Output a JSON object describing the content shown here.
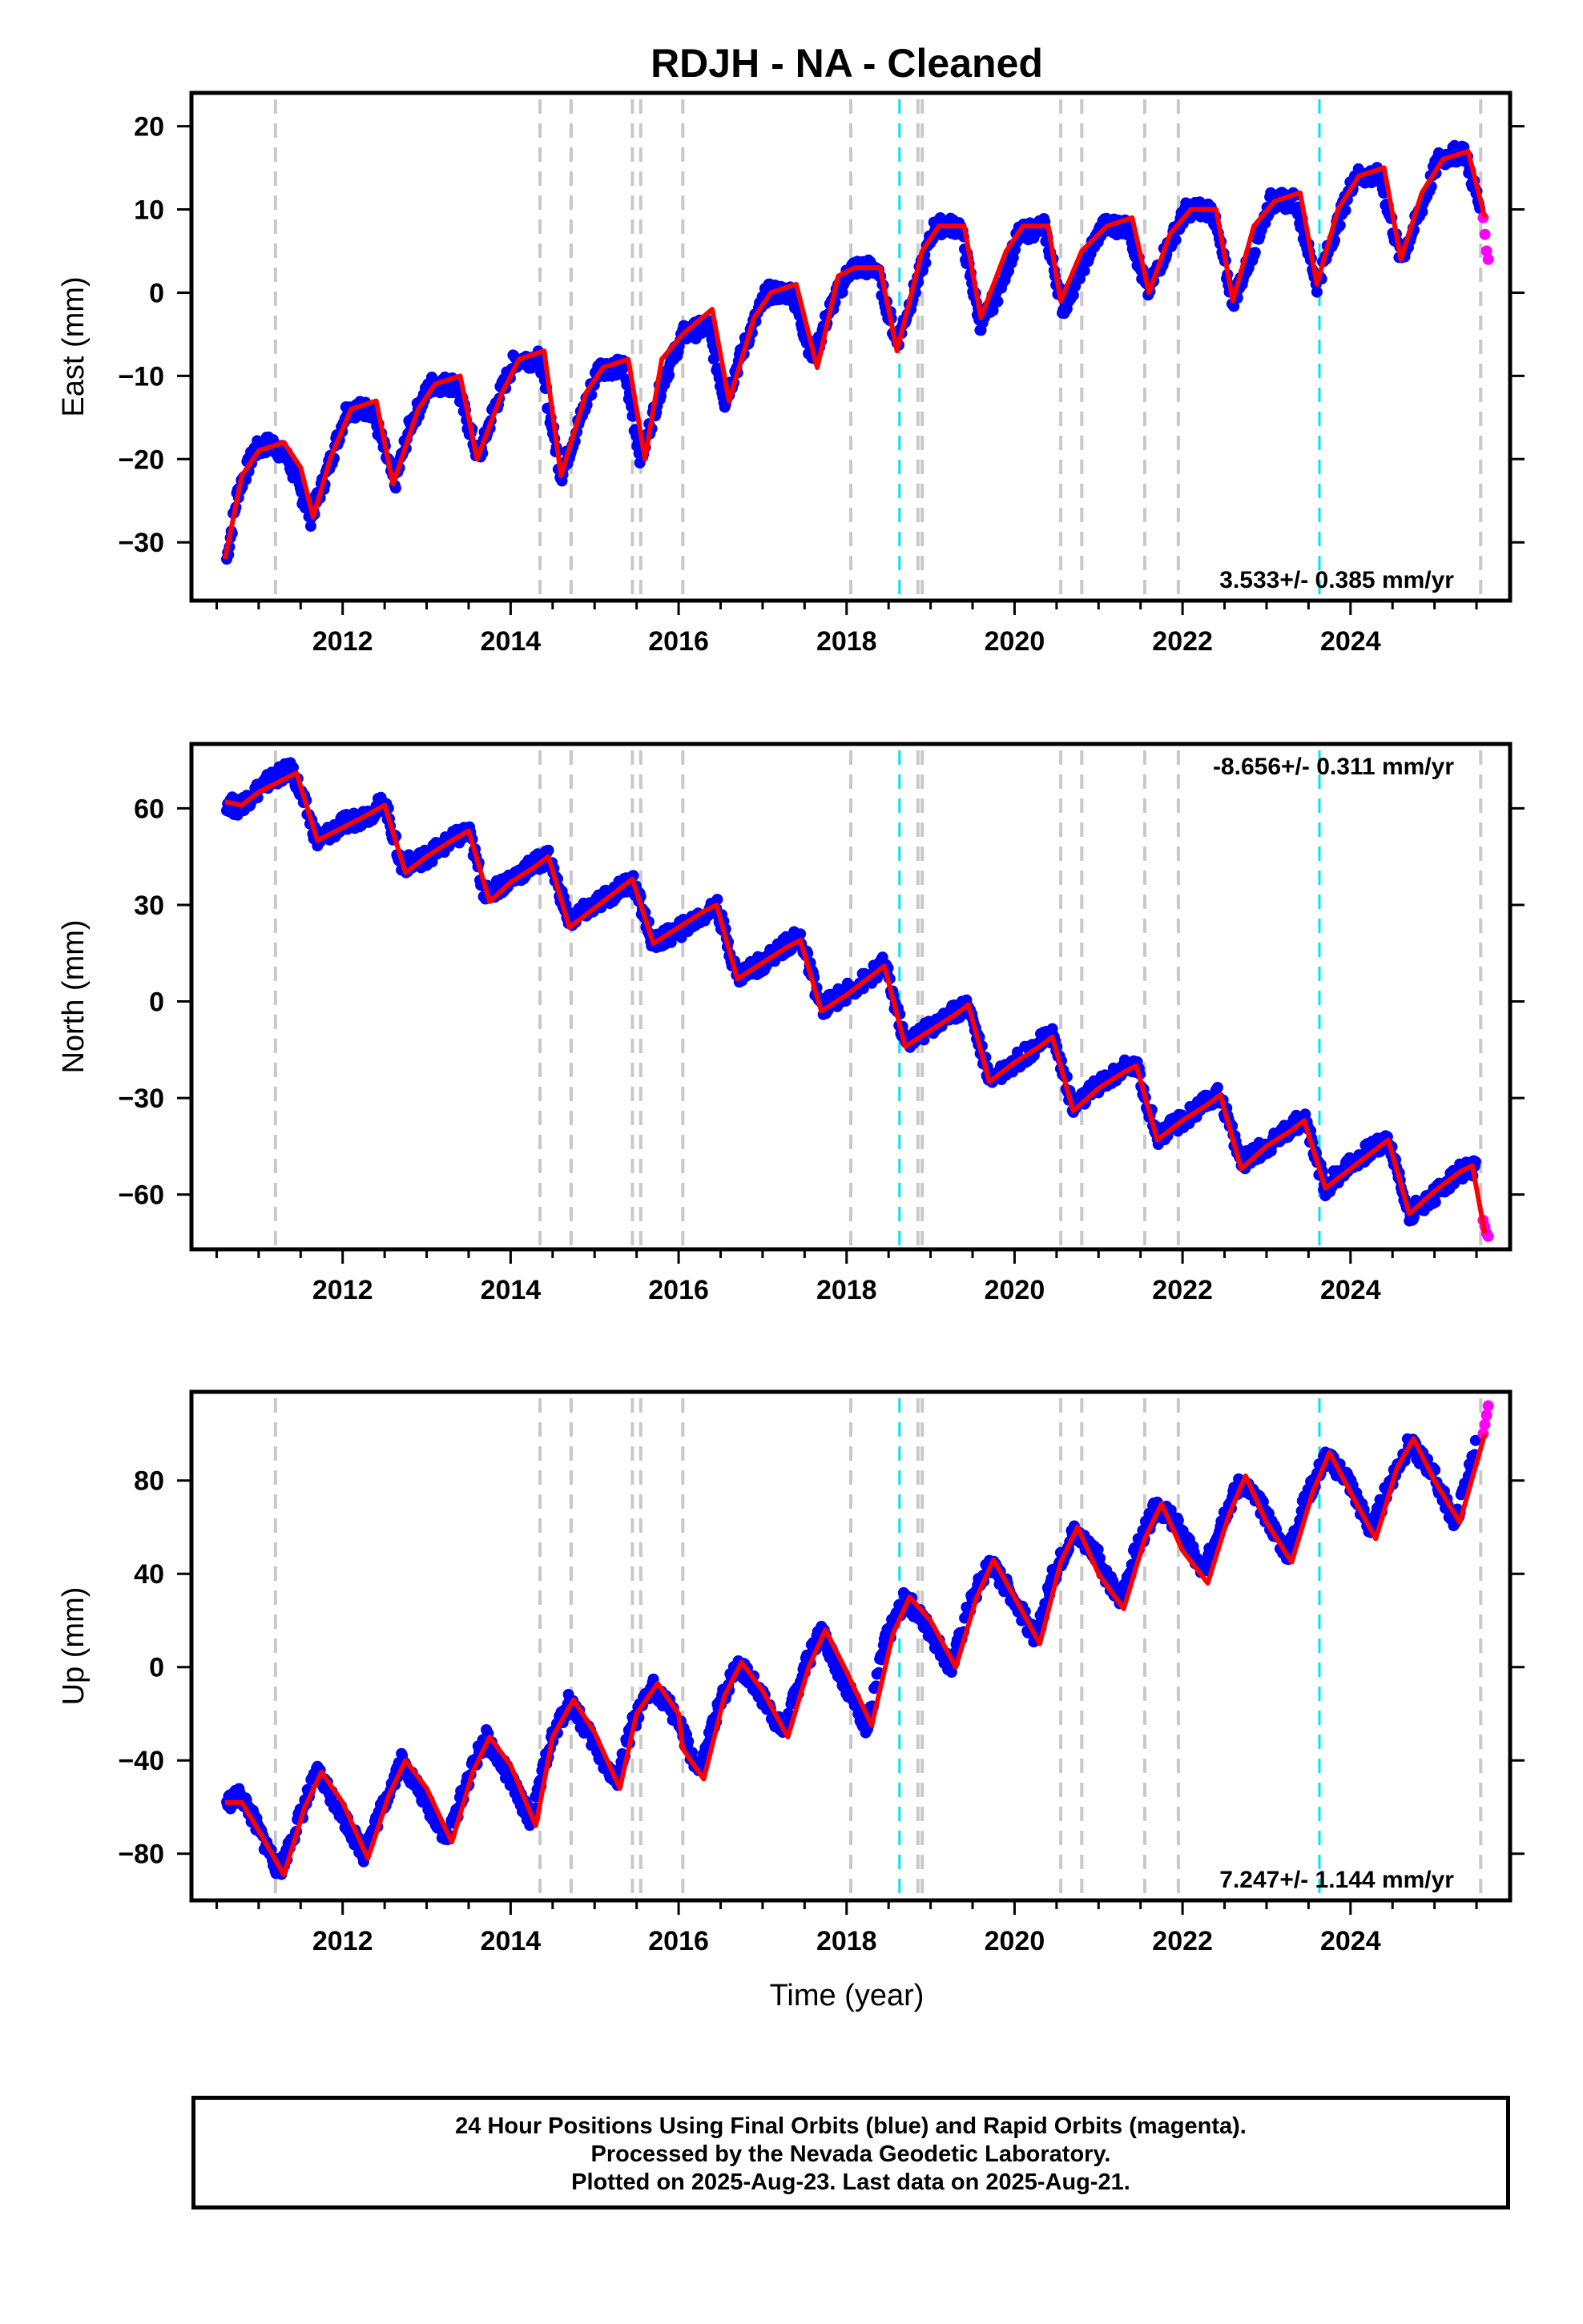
{
  "title": "RDJH  - NA - Cleaned",
  "xlabel": "Time (year)",
  "caption": {
    "line1": "24 Hour Positions Using Final Orbits (blue) and Rapid Orbits (magenta).",
    "line2": "Processed by the Nevada Geodetic Laboratory.",
    "line3": "Plotted on 2025-Aug-23. Last data on 2025-Aug-21."
  },
  "colors": {
    "final": "#0000ff",
    "rapid": "#ff00ff",
    "model": "#ff0000",
    "equipment_change": "#c8c8c8",
    "earthquake": "#00e5ee"
  },
  "chart_data": [
    {
      "type": "scatter",
      "ylabel": "East (mm)",
      "rate": "3.533+/- 0.385 mm/yr",
      "rate_position": "bottom-right",
      "xlim": [
        2010.2,
        2025.9
      ],
      "ylim": [
        -37,
        24
      ],
      "xticks": [
        2012,
        2014,
        2016,
        2018,
        2020,
        2022,
        2024
      ],
      "yticks": [
        20,
        10,
        0,
        -10,
        -20,
        -30
      ],
      "series": [
        {
          "name": "Final Orbits (blue)",
          "x": [
            2010.62,
            2010.75,
            2010.95,
            2011.15,
            2011.35,
            2011.62,
            2011.8,
            2012.05,
            2012.35,
            2012.62,
            2012.8,
            2013.05,
            2013.35,
            2013.62,
            2013.8,
            2014.05,
            2014.35,
            2014.6,
            2014.8,
            2015.05,
            2015.35,
            2015.55,
            2015.8,
            2016.05,
            2016.35,
            2016.55,
            2016.8,
            2017.05,
            2017.35,
            2017.6,
            2017.8,
            2018.05,
            2018.35,
            2018.6,
            2018.8,
            2019.05,
            2019.35,
            2019.6,
            2019.8,
            2020.05,
            2020.35,
            2020.58,
            2020.8,
            2021.05,
            2021.35,
            2021.58,
            2021.8,
            2022.05,
            2022.35,
            2022.6,
            2022.8,
            2023.05,
            2023.35,
            2023.6,
            2023.8,
            2024.05,
            2024.35,
            2024.6,
            2024.8,
            2025.05,
            2025.35,
            2025.55
          ],
          "y": [
            -32,
            -24,
            -19,
            -18,
            -20,
            -27,
            -22,
            -14,
            -14,
            -23,
            -16,
            -11,
            -11,
            -20,
            -14,
            -8,
            -8,
            -22,
            -16,
            -9,
            -9,
            -20,
            -11,
            -5,
            -4,
            -13,
            -6,
            0,
            0,
            -8,
            -2,
            3,
            3,
            -6,
            0,
            8,
            8,
            -4,
            0,
            7,
            8,
            -2,
            3,
            8,
            8,
            0,
            5,
            10,
            10,
            -1,
            4,
            11,
            11,
            1,
            7,
            14,
            14,
            4,
            9,
            16,
            17,
            10
          ]
        },
        {
          "name": "Rapid Orbits (magenta)",
          "x": [
            2025.58,
            2025.6,
            2025.62,
            2025.64
          ],
          "y": [
            9,
            7,
            5,
            4
          ]
        }
      ],
      "model": {
        "x": [
          2010.6,
          2010.8,
          2011.0,
          2011.3,
          2011.5,
          2011.65,
          2011.85,
          2012.1,
          2012.4,
          2012.6,
          2012.9,
          2013.1,
          2013.4,
          2013.6,
          2013.9,
          2014.1,
          2014.4,
          2014.6,
          2014.9,
          2015.1,
          2015.4,
          2015.6,
          2015.8,
          2016.05,
          2016.4,
          2016.6,
          2016.9,
          2017.1,
          2017.4,
          2017.65,
          2017.9,
          2018.1,
          2018.4,
          2018.6,
          2018.9,
          2019.1,
          2019.4,
          2019.6,
          2019.9,
          2020.1,
          2020.4,
          2020.55,
          2020.8,
          2021.1,
          2021.4,
          2021.6,
          2021.85,
          2022.1,
          2022.4,
          2022.6,
          2022.85,
          2023.1,
          2023.4,
          2023.6,
          2023.85,
          2024.1,
          2024.4,
          2024.6,
          2024.85,
          2025.1,
          2025.4,
          2025.6
        ],
        "y": [
          -32,
          -22,
          -19,
          -18,
          -21,
          -27,
          -20,
          -14,
          -13,
          -23,
          -14,
          -11,
          -10,
          -20,
          -12,
          -8,
          -7,
          -22,
          -12,
          -9,
          -8,
          -20,
          -8,
          -5,
          -2,
          -13,
          -3,
          0,
          1,
          -9,
          2,
          3,
          3,
          -7,
          5,
          8,
          8,
          -3,
          5,
          8,
          8,
          -1,
          5,
          8,
          9,
          0,
          7,
          10,
          10,
          -1,
          8,
          11,
          12,
          1,
          10,
          14,
          15,
          4,
          12,
          16,
          17,
          9
        ]
      },
      "vlines_equipment": [
        2011.2,
        2014.35,
        2014.72,
        2015.45,
        2015.55,
        2016.05,
        2018.05,
        2018.85,
        2018.9,
        2020.55,
        2020.8,
        2021.55,
        2021.95,
        2025.55
      ],
      "vlines_earthquake": [
        2018.63,
        2023.63
      ]
    },
    {
      "type": "scatter",
      "ylabel": "North (mm)",
      "rate": "-8.656+/- 0.311 mm/yr",
      "rate_position": "top-right",
      "xlim": [
        2010.2,
        2025.9
      ],
      "ylim": [
        -77,
        80
      ],
      "xticks": [
        2012,
        2014,
        2016,
        2018,
        2020,
        2022,
        2024
      ],
      "yticks": [
        60,
        30,
        0,
        -30,
        -60
      ],
      "series": [
        {
          "name": "Final Orbits (blue)",
          "x": [
            2010.62,
            2010.75,
            2011.0,
            2011.2,
            2011.4,
            2011.7,
            2012.0,
            2012.3,
            2012.5,
            2012.7,
            2013.0,
            2013.3,
            2013.5,
            2013.7,
            2014.0,
            2014.3,
            2014.45,
            2014.7,
            2015.0,
            2015.3,
            2015.45,
            2015.7,
            2016.0,
            2016.3,
            2016.45,
            2016.7,
            2017.0,
            2017.3,
            2017.45,
            2017.7,
            2018.0,
            2018.3,
            2018.45,
            2018.7,
            2019.0,
            2019.3,
            2019.45,
            2019.7,
            2020.0,
            2020.3,
            2020.45,
            2020.7,
            2021.0,
            2021.3,
            2021.45,
            2021.7,
            2022.0,
            2022.3,
            2022.45,
            2022.7,
            2023.0,
            2023.3,
            2023.45,
            2023.7,
            2024.0,
            2024.3,
            2024.45,
            2024.7,
            2025.0,
            2025.3,
            2025.5
          ],
          "y": [
            62,
            60,
            66,
            70,
            72,
            50,
            55,
            58,
            62,
            42,
            45,
            50,
            53,
            33,
            38,
            43,
            45,
            25,
            30,
            35,
            38,
            18,
            22,
            27,
            30,
            8,
            12,
            18,
            20,
            -2,
            3,
            8,
            12,
            -13,
            -8,
            -3,
            -1,
            -24,
            -19,
            -13,
            -10,
            -33,
            -26,
            -21,
            -20,
            -42,
            -37,
            -31,
            -29,
            -50,
            -45,
            -39,
            -36,
            -58,
            -50,
            -45,
            -43,
            -66,
            -60,
            -53,
            -52
          ]
        },
        {
          "name": "Rapid Orbits (magenta)",
          "x": [
            2025.58,
            2025.6,
            2025.62,
            2025.64
          ],
          "y": [
            -68,
            -70,
            -72,
            -73
          ]
        }
      ],
      "model": {
        "x": [
          2010.6,
          2010.8,
          2011.0,
          2011.3,
          2011.45,
          2011.7,
          2012.0,
          2012.3,
          2012.5,
          2012.75,
          2013.0,
          2013.3,
          2013.5,
          2013.75,
          2014.0,
          2014.3,
          2014.45,
          2014.7,
          2015.0,
          2015.3,
          2015.45,
          2015.7,
          2016.0,
          2016.3,
          2016.45,
          2016.7,
          2017.0,
          2017.3,
          2017.45,
          2017.7,
          2018.0,
          2018.3,
          2018.45,
          2018.7,
          2019.0,
          2019.3,
          2019.45,
          2019.7,
          2020.0,
          2020.3,
          2020.45,
          2020.7,
          2021.0,
          2021.3,
          2021.45,
          2021.7,
          2022.0,
          2022.3,
          2022.45,
          2022.7,
          2023.0,
          2023.3,
          2023.45,
          2023.7,
          2024.0,
          2024.3,
          2024.45,
          2024.7,
          2025.0,
          2025.3,
          2025.45,
          2025.6
        ],
        "y": [
          62,
          61,
          65,
          69,
          71,
          50,
          54,
          58,
          61,
          40,
          45,
          50,
          53,
          31,
          37,
          42,
          45,
          23,
          29,
          35,
          38,
          18,
          23,
          28,
          30,
          7,
          12,
          17,
          19,
          -3,
          2,
          8,
          11,
          -14,
          -9,
          -4,
          -1,
          -25,
          -19,
          -14,
          -11,
          -34,
          -27,
          -22,
          -20,
          -43,
          -37,
          -32,
          -29,
          -52,
          -45,
          -40,
          -37,
          -58,
          -52,
          -46,
          -43,
          -66,
          -59,
          -53,
          -51,
          -72
        ]
      },
      "vlines_equipment": [
        2011.2,
        2014.35,
        2014.72,
        2015.45,
        2015.55,
        2016.05,
        2018.05,
        2018.85,
        2018.9,
        2020.55,
        2020.8,
        2021.55,
        2021.95,
        2025.55
      ],
      "vlines_earthquake": [
        2018.63,
        2023.63
      ]
    },
    {
      "type": "scatter",
      "ylabel": "Up (mm)",
      "rate": "7.247+/- 1.144 mm/yr",
      "rate_position": "bottom-right",
      "xlim": [
        2010.2,
        2025.9
      ],
      "ylim": [
        -100,
        118
      ],
      "xticks": [
        2012,
        2014,
        2016,
        2018,
        2020,
        2022,
        2024
      ],
      "yticks": [
        80,
        40,
        0,
        -40,
        -80
      ],
      "series": [
        {
          "name": "Final Orbits (blue)",
          "x": [
            2010.62,
            2010.8,
            2011.0,
            2011.25,
            2011.45,
            2011.7,
            2011.95,
            2012.25,
            2012.45,
            2012.7,
            2012.95,
            2013.25,
            2013.45,
            2013.7,
            2013.95,
            2014.25,
            2014.45,
            2014.7,
            2014.95,
            2015.25,
            2015.45,
            2015.7,
            2015.95,
            2016.25,
            2016.45,
            2016.7,
            2016.95,
            2017.25,
            2017.45,
            2017.7,
            2017.95,
            2018.25,
            2018.45,
            2018.7,
            2018.95,
            2019.25,
            2019.45,
            2019.7,
            2019.95,
            2020.25,
            2020.45,
            2020.7,
            2020.95,
            2021.25,
            2021.45,
            2021.7,
            2021.95,
            2022.25,
            2022.45,
            2022.7,
            2022.95,
            2023.25,
            2023.45,
            2023.7,
            2023.95,
            2024.25,
            2024.45,
            2024.7,
            2024.95,
            2025.25,
            2025.5
          ],
          "y": [
            -58,
            -55,
            -70,
            -88,
            -68,
            -45,
            -60,
            -80,
            -62,
            -40,
            -55,
            -74,
            -52,
            -30,
            -45,
            -66,
            -35,
            -14,
            -30,
            -50,
            -25,
            -8,
            -20,
            -46,
            -20,
            2,
            -10,
            -28,
            -5,
            16,
            -5,
            -26,
            10,
            30,
            18,
            0,
            25,
            45,
            32,
            12,
            38,
            58,
            50,
            28,
            50,
            70,
            60,
            40,
            62,
            80,
            68,
            48,
            70,
            90,
            82,
            58,
            78,
            96,
            85,
            62,
            96
          ]
        },
        {
          "name": "Rapid Orbits (magenta)",
          "x": [
            2025.58,
            2025.6,
            2025.62,
            2025.64
          ],
          "y": [
            100,
            104,
            108,
            112
          ]
        }
      ],
      "model": {
        "x": [
          2010.6,
          2010.8,
          2011.0,
          2011.3,
          2011.55,
          2011.75,
          2012.0,
          2012.3,
          2012.55,
          2012.75,
          2013.0,
          2013.3,
          2013.55,
          2013.75,
          2014.0,
          2014.3,
          2014.5,
          2014.75,
          2015.0,
          2015.3,
          2015.5,
          2015.75,
          2016.0,
          2016.05,
          2016.3,
          2016.55,
          2016.75,
          2017.0,
          2017.3,
          2017.55,
          2017.75,
          2018.0,
          2018.3,
          2018.55,
          2018.75,
          2019.0,
          2019.3,
          2019.55,
          2019.75,
          2020.0,
          2020.3,
          2020.55,
          2020.75,
          2021.0,
          2021.3,
          2021.55,
          2021.75,
          2022.0,
          2022.3,
          2022.55,
          2022.75,
          2023.0,
          2023.3,
          2023.55,
          2023.75,
          2024.0,
          2024.3,
          2024.55,
          2024.75,
          2025.0,
          2025.3,
          2025.6
        ],
        "y": [
          -58,
          -58,
          -70,
          -89,
          -60,
          -45,
          -58,
          -82,
          -55,
          -40,
          -52,
          -75,
          -45,
          -30,
          -42,
          -68,
          -30,
          -14,
          -28,
          -52,
          -20,
          -7,
          -20,
          -35,
          -48,
          -12,
          2,
          -10,
          -30,
          0,
          16,
          -2,
          -25,
          14,
          30,
          20,
          0,
          30,
          46,
          30,
          10,
          45,
          60,
          40,
          25,
          55,
          70,
          50,
          36,
          65,
          82,
          62,
          45,
          75,
          92,
          75,
          55,
          85,
          98,
          80,
          62,
          100
        ]
      },
      "vlines_equipment": [
        2011.2,
        2014.35,
        2014.72,
        2015.45,
        2015.55,
        2016.05,
        2018.05,
        2018.85,
        2018.9,
        2020.55,
        2020.8,
        2021.55,
        2021.95,
        2025.55
      ],
      "vlines_earthquake": [
        2018.63,
        2023.63
      ]
    }
  ]
}
